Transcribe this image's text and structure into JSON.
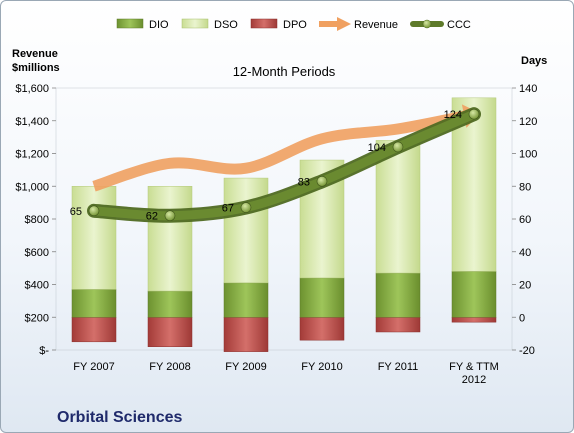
{
  "chart_data": {
    "type": "bar",
    "title": "12-Month Periods",
    "company": "Orbital Sciences",
    "y_left_label": [
      "Revenue",
      "$millions"
    ],
    "y_right_label": "Days",
    "y_left_ticks": [
      "$-",
      "$200",
      "$400",
      "$600",
      "$800",
      "$1,000",
      "$1,200",
      "$1,400",
      "$1,600"
    ],
    "y_right_ticks": [
      "-20",
      "0",
      "20",
      "40",
      "60",
      "80",
      "100",
      "120",
      "140"
    ],
    "ylim_left": [
      0,
      1600
    ],
    "ylim_right": [
      -20,
      140
    ],
    "categories": [
      [
        "FY 2007"
      ],
      [
        "FY 2008"
      ],
      [
        "FY 2009"
      ],
      [
        "FY 2010"
      ],
      [
        "FY 2011"
      ],
      [
        "FY & TTM",
        "2012"
      ]
    ],
    "legend": [
      "DIO",
      "DSO",
      "DPO",
      "Revenue",
      "CCC"
    ],
    "series": [
      {
        "name": "DIO",
        "axis": "days",
        "values": [
          17,
          16,
          21,
          24,
          27,
          28
        ],
        "color": "#7ea33a"
      },
      {
        "name": "DSO",
        "axis": "days",
        "values": [
          63,
          64,
          64,
          72,
          81,
          106
        ],
        "color": "#d8e8b0"
      },
      {
        "name": "DPO",
        "axis": "days",
        "values": [
          -15,
          -18,
          -21,
          -14,
          -9,
          -3
        ],
        "color": "#b84a47"
      },
      {
        "name": "Revenue",
        "axis": "revenue",
        "values": [
          1000,
          1140,
          1110,
          1290,
          1350,
          1440
        ],
        "color": "#f0a060"
      },
      {
        "name": "CCC",
        "axis": "days",
        "values": [
          65,
          62,
          67,
          83,
          104,
          124
        ],
        "color": "#5e7a2a"
      }
    ],
    "ccc_labels": [
      "65",
      "62",
      "67",
      "83",
      "104",
      "124"
    ],
    "grid": false,
    "legend_position": "top"
  }
}
